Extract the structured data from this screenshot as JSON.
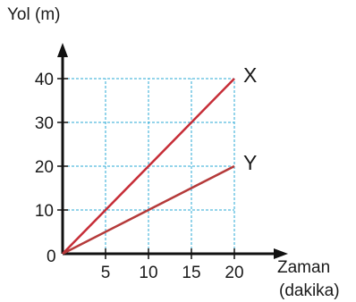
{
  "chart_data": {
    "type": "line",
    "ylabel": "Yol (m)",
    "xlabel_line1": "Zaman",
    "xlabel_line2": "(dakika)",
    "origin_label": "0",
    "x_ticks": [
      5,
      10,
      15,
      20
    ],
    "y_ticks": [
      10,
      20,
      30,
      40
    ],
    "xlim": [
      0,
      20
    ],
    "ylim": [
      0,
      40
    ],
    "grid": true,
    "grid_color": "#29a9d6",
    "series": [
      {
        "name": "X",
        "color": "#c62d37",
        "x": [
          0,
          20
        ],
        "y": [
          0,
          40
        ]
      },
      {
        "name": "Y",
        "color": "#b53a3a",
        "x": [
          0,
          20
        ],
        "y": [
          0,
          20
        ]
      }
    ]
  }
}
